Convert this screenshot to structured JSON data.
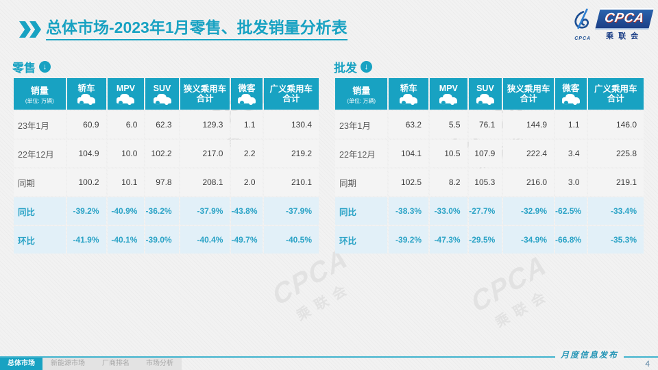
{
  "title": {
    "section": "总体市场",
    "rest": "-2023年1月零售、批发销量分析表"
  },
  "logo": {
    "wordmark": "CPCA",
    "subtext": "乘联会",
    "emblem_text": "CPCA"
  },
  "watermark": {
    "main": "CPCA",
    "sub": "乘联会"
  },
  "colors": {
    "accent": "#18a2c2",
    "percent_bg": "#e2f0f8",
    "percent_text": "#2ba3c6",
    "header_text": "#ffffff",
    "logo_blue": "#1c3f86"
  },
  "tables": [
    {
      "id": "retail",
      "name": "零售",
      "header": {
        "title": "销量",
        "unit": "(单位: 万辆)"
      },
      "columns": [
        {
          "id": "sedan",
          "label": "轿车",
          "icon": "sedan-car-icon"
        },
        {
          "id": "mpv",
          "label": "MPV",
          "icon": "mpv-car-icon"
        },
        {
          "id": "suv",
          "label": "SUV",
          "icon": "suv-car-icon"
        },
        {
          "id": "narrow-pv-total",
          "label": "狭义乘用车",
          "label2": "合计"
        },
        {
          "id": "microvan",
          "label": "微客",
          "icon": "microvan-car-icon"
        },
        {
          "id": "broad-pv-total",
          "label": "广义乘用车",
          "label2": "合计"
        }
      ],
      "rows": [
        {
          "label": "23年1月",
          "type": "data",
          "values": [
            "60.9",
            "6.0",
            "62.3",
            "129.3",
            "1.1",
            "130.4"
          ]
        },
        {
          "label": "22年12月",
          "type": "data",
          "values": [
            "104.9",
            "10.0",
            "102.2",
            "217.0",
            "2.2",
            "219.2"
          ]
        },
        {
          "label": "同期",
          "type": "data",
          "values": [
            "100.2",
            "10.1",
            "97.8",
            "208.1",
            "2.0",
            "210.1"
          ]
        },
        {
          "label": "同比",
          "type": "percent",
          "values": [
            "-39.2%",
            "-40.9%",
            "-36.2%",
            "-37.9%",
            "-43.8%",
            "-37.9%"
          ]
        },
        {
          "label": "环比",
          "type": "percent",
          "values": [
            "-41.9%",
            "-40.1%",
            "-39.0%",
            "-40.4%",
            "-49.7%",
            "-40.5%"
          ]
        }
      ]
    },
    {
      "id": "wholesale",
      "name": "批发",
      "header": {
        "title": "销量",
        "unit": "(单位: 万辆)"
      },
      "columns": [
        {
          "id": "sedan",
          "label": "轿车",
          "icon": "sedan-car-icon"
        },
        {
          "id": "mpv",
          "label": "MPV",
          "icon": "mpv-car-icon"
        },
        {
          "id": "suv",
          "label": "SUV",
          "icon": "suv-car-icon"
        },
        {
          "id": "narrow-pv-total",
          "label": "狭义乘用车",
          "label2": "合计"
        },
        {
          "id": "microvan",
          "label": "微客",
          "icon": "microvan-car-icon"
        },
        {
          "id": "broad-pv-total",
          "label": "广义乘用车",
          "label2": "合计"
        }
      ],
      "rows": [
        {
          "label": "23年1月",
          "type": "data",
          "values": [
            "63.2",
            "5.5",
            "76.1",
            "144.9",
            "1.1",
            "146.0"
          ]
        },
        {
          "label": "22年12月",
          "type": "data",
          "values": [
            "104.1",
            "10.5",
            "107.9",
            "222.4",
            "3.4",
            "225.8"
          ]
        },
        {
          "label": "同期",
          "type": "data",
          "values": [
            "102.5",
            "8.2",
            "105.3",
            "216.0",
            "3.0",
            "219.1"
          ]
        },
        {
          "label": "同比",
          "type": "percent",
          "values": [
            "-38.3%",
            "-33.0%",
            "-27.7%",
            "-32.9%",
            "-62.5%",
            "-33.4%"
          ]
        },
        {
          "label": "环比",
          "type": "percent",
          "values": [
            "-39.2%",
            "-47.3%",
            "-29.5%",
            "-34.9%",
            "-66.8%",
            "-35.3%"
          ]
        }
      ]
    }
  ],
  "footer": {
    "tabs": [
      {
        "label": "总体市场",
        "active": true
      },
      {
        "label": "新能源市场",
        "active": false
      },
      {
        "label": "厂商排名",
        "active": false
      },
      {
        "label": "市场分析",
        "active": false
      }
    ],
    "note": "月度信息发布",
    "page": "4"
  }
}
